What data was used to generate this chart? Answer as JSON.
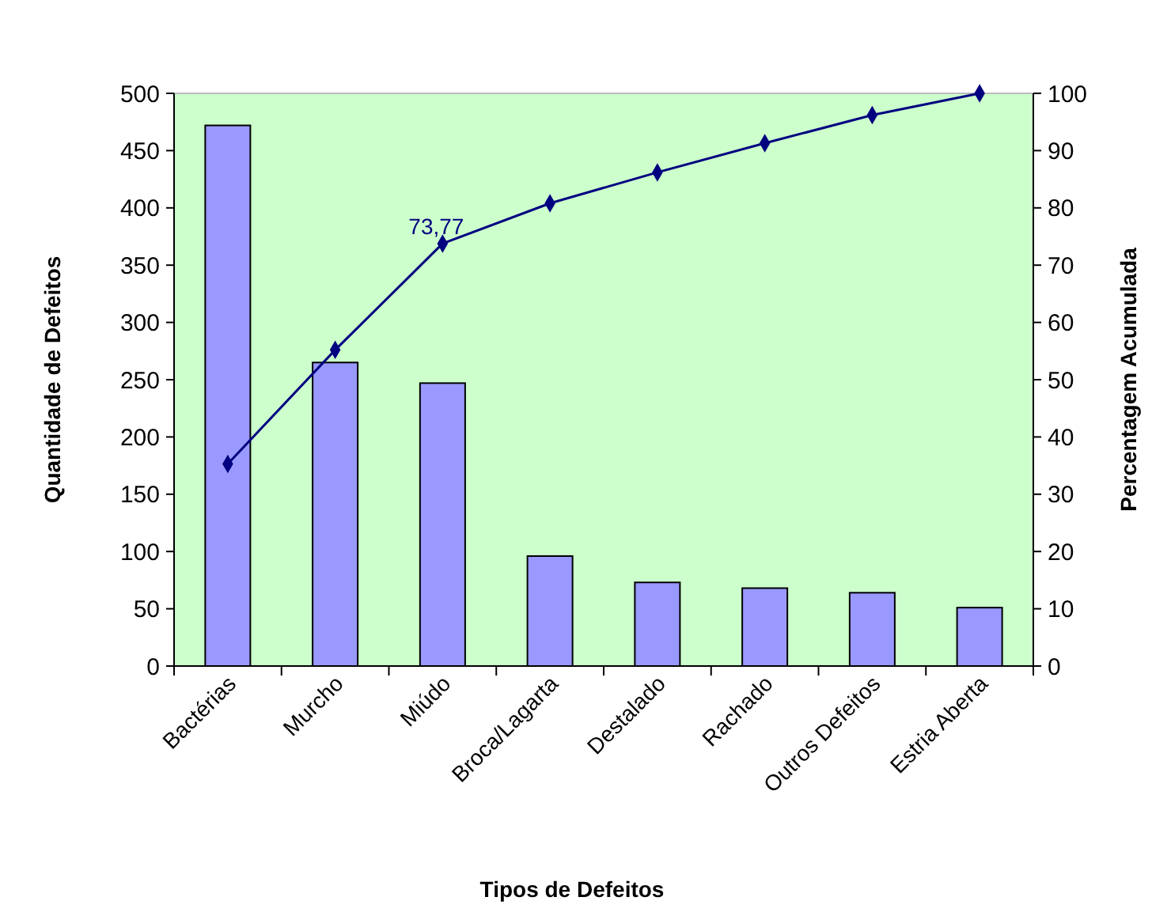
{
  "chart_data": {
    "type": "bar",
    "xlabel": "Tipos de Defeitos",
    "ylabel": "Quantidade de Defeitos",
    "y2label": "Percentagem Acumulada",
    "categories": [
      "Bactérias",
      "Murcho",
      "Miúdo",
      "Broca/Lagarta",
      "Destalado",
      "Rachado",
      "Outros Defeitos",
      "Estria Aberta"
    ],
    "series": [
      {
        "color": "#9999ff",
        "values": [
          472,
          265,
          247,
          96,
          73,
          68,
          64,
          51
        ]
      },
      {
        "type": "line",
        "axis": "y2",
        "color": "#000080",
        "marker": "diamond",
        "line_style": "solid",
        "values": [
          35.3,
          55.2,
          73.77,
          80.8,
          86.2,
          91.3,
          96.2,
          100
        ],
        "value_labels": [
          null,
          null,
          "73,77",
          null,
          null,
          null,
          null,
          null
        ]
      }
    ],
    "ylim": [
      0,
      500
    ],
    "yticks": [
      0,
      50,
      100,
      150,
      200,
      250,
      300,
      350,
      400,
      450,
      500
    ],
    "y2lim": [
      0,
      100
    ],
    "y2ticks": [
      0,
      10,
      20,
      30,
      40,
      50,
      60,
      70,
      80,
      90,
      100
    ],
    "grid": false
  }
}
